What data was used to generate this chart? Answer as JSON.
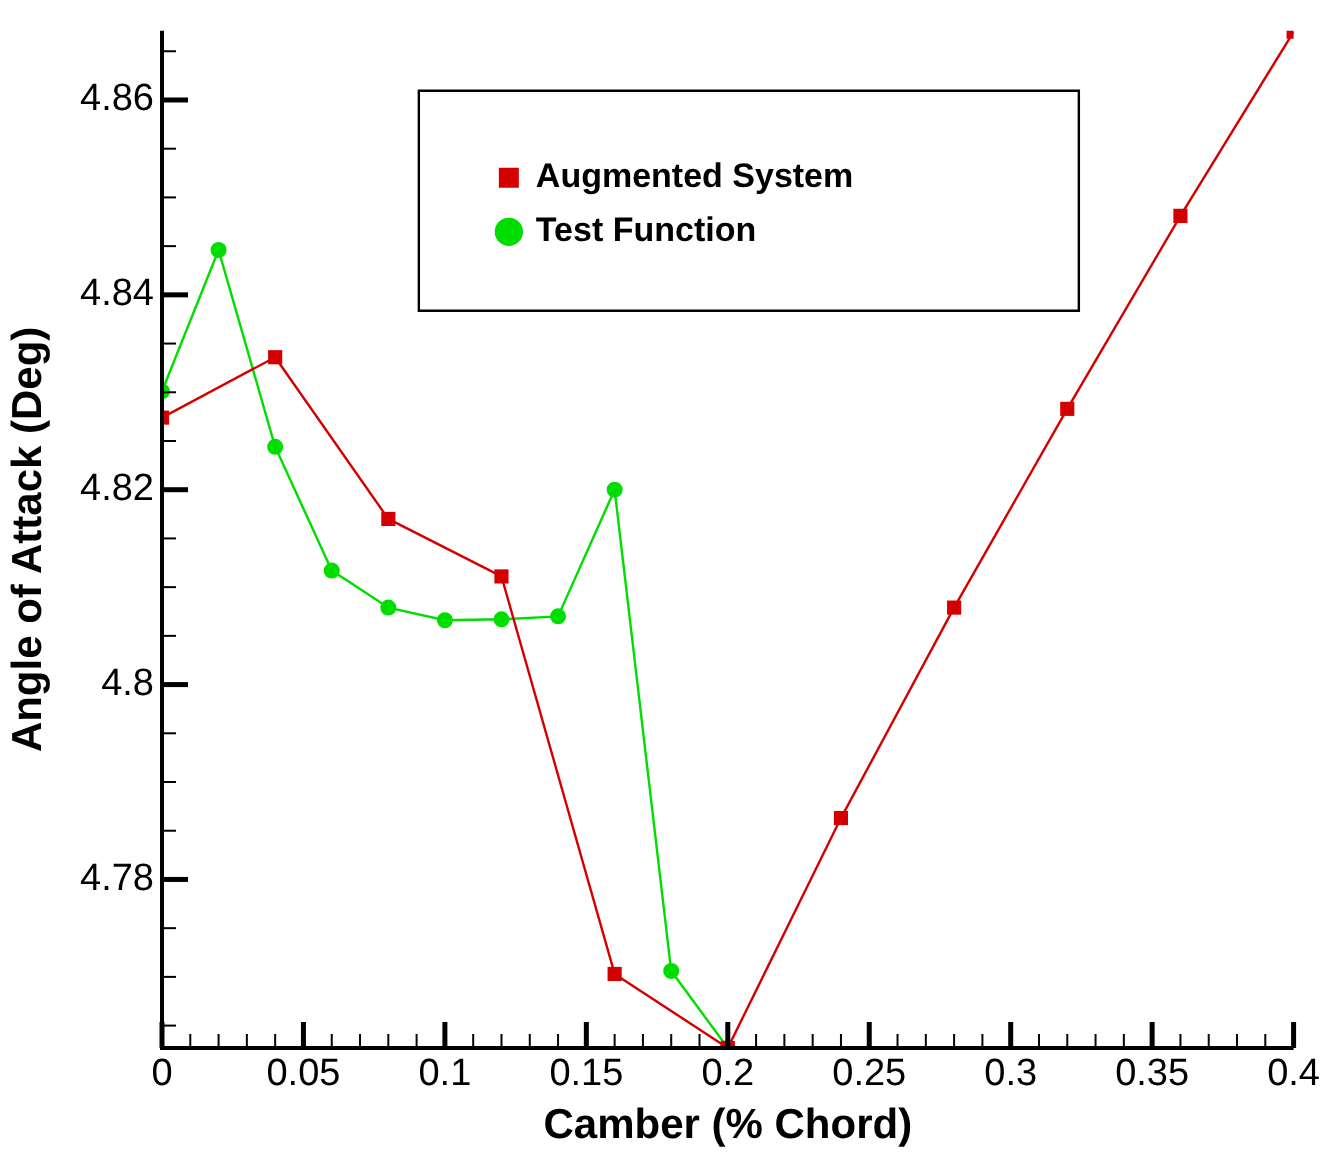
{
  "chart_data": {
    "type": "line",
    "xlabel": "Camber (% Chord)",
    "ylabel": "Angle of Attack (Deg)",
    "xlim": [
      0,
      0.4
    ],
    "ylim": [
      4.7627,
      4.8671
    ],
    "xticks": [
      0,
      {
        "value": 0.01,
        "label": null
      },
      {
        "value": 0.02,
        "label": null
      },
      {
        "value": 0.03,
        "label": null
      },
      {
        "value": 0.04,
        "label": null
      },
      0.05,
      {
        "value": 0.06,
        "label": null
      },
      {
        "value": 0.07,
        "label": null
      },
      {
        "value": 0.08,
        "label": null
      },
      {
        "value": 0.09,
        "label": null
      },
      0.1,
      {
        "value": 0.11,
        "label": null
      },
      {
        "value": 0.12,
        "label": null
      },
      {
        "value": 0.13,
        "label": null
      },
      {
        "value": 0.14,
        "label": null
      },
      0.15,
      {
        "value": 0.16,
        "label": null
      },
      {
        "value": 0.17,
        "label": null
      },
      {
        "value": 0.18,
        "label": null
      },
      {
        "value": 0.19,
        "label": null
      },
      0.2,
      {
        "value": 0.21,
        "label": null
      },
      {
        "value": 0.22,
        "label": null
      },
      {
        "value": 0.23,
        "label": null
      },
      {
        "value": 0.24,
        "label": null
      },
      0.25,
      {
        "value": 0.26,
        "label": null
      },
      {
        "value": 0.27,
        "label": null
      },
      {
        "value": 0.28,
        "label": null
      },
      {
        "value": 0.29,
        "label": null
      },
      0.3,
      {
        "value": 0.31,
        "label": null
      },
      {
        "value": 0.32,
        "label": null
      },
      {
        "value": 0.33,
        "label": null
      },
      {
        "value": 0.34,
        "label": null
      },
      0.35,
      {
        "value": 0.36,
        "label": null
      },
      {
        "value": 0.37,
        "label": null
      },
      {
        "value": 0.38,
        "label": null
      },
      {
        "value": 0.39,
        "label": null
      },
      0.4
    ],
    "yticks": [
      {
        "value": 4.765,
        "label": null
      },
      {
        "value": 4.77,
        "label": null
      },
      {
        "value": 4.775,
        "label": null
      },
      4.78,
      {
        "value": 4.785,
        "label": null
      },
      {
        "value": 4.79,
        "label": null
      },
      {
        "value": 4.795,
        "label": null
      },
      {
        "value": 4.8,
        "label": "4.8"
      },
      {
        "value": 4.805,
        "label": null
      },
      {
        "value": 4.81,
        "label": null
      },
      {
        "value": 4.815,
        "label": null
      },
      4.82,
      {
        "value": 4.825,
        "label": null
      },
      {
        "value": 4.83,
        "label": null
      },
      {
        "value": 4.835,
        "label": null
      },
      4.84,
      {
        "value": 4.845,
        "label": null
      },
      {
        "value": 4.85,
        "label": null
      },
      {
        "value": 4.855,
        "label": null
      },
      4.86,
      {
        "value": 4.865,
        "label": null
      }
    ],
    "grid": false,
    "legend": "top",
    "line_style": "solid",
    "series": [
      {
        "name": "Augmented System",
        "color": "#d40000",
        "marker": "square",
        "x": [
          0,
          0.04,
          0.08,
          0.12,
          0.16,
          0.2,
          0.24,
          0.28,
          0.32,
          0.36,
          0.4
        ],
        "values": [
          4.8274,
          4.8336,
          4.817,
          4.8111,
          4.7703,
          4.7627,
          4.7863,
          4.8079,
          4.8283,
          4.8481,
          4.867
        ]
      },
      {
        "name": "Test Function",
        "color": "#00dd00",
        "marker": "circle",
        "x": [
          0,
          0.02,
          0.04,
          0.06,
          0.08,
          0.1,
          0.12,
          0.14,
          0.16,
          0.18,
          0.2
        ],
        "values": [
          4.8301,
          4.8446,
          4.8244,
          4.8117,
          4.8079,
          4.8066,
          4.8067,
          4.807,
          4.82,
          4.7706,
          4.7627
        ]
      }
    ]
  }
}
